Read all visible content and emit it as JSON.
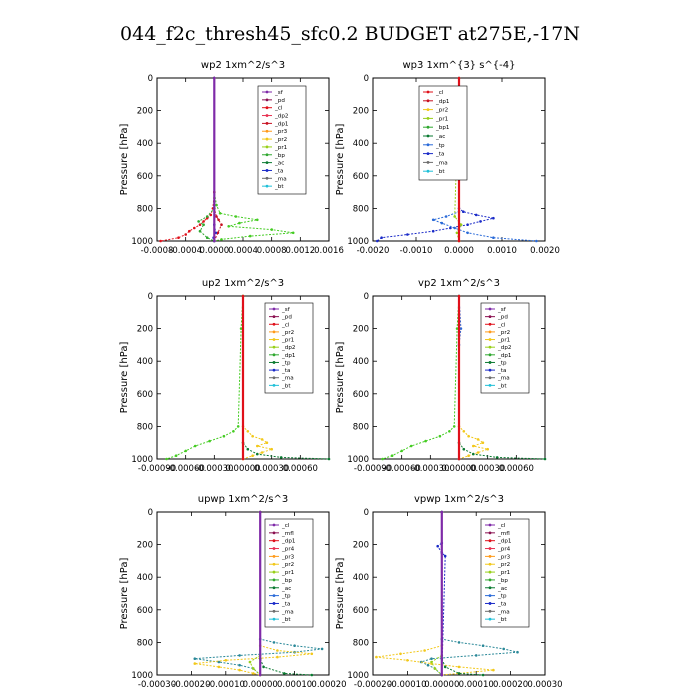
{
  "title": "044_f2c_thresh45_sfc0.2  BUDGET at275E,-17N",
  "chart_data": [
    {
      "type": "line",
      "title": "wp2   1xm^2/s^3",
      "ylabel": "Pressure  [hPa]",
      "xlim": [
        -0.0008,
        0.0016
      ],
      "ylim": [
        1000,
        0
      ],
      "xticks": [
        -0.0008,
        -0.0004,
        0.0,
        0.0004,
        0.0008,
        0.0012,
        0.0016
      ],
      "xtick_labels": [
        "-0.0008",
        "-0.0004",
        "0.0000",
        "0.0004",
        "0.0008",
        "0.0012",
        "0.0016"
      ],
      "yticks": [
        0,
        200,
        400,
        600,
        800,
        1000
      ],
      "ytick_labels": [
        "0",
        "200",
        "400",
        "600",
        "800",
        "1000"
      ],
      "legend": [
        "_sf",
        "_pd",
        "_cl",
        "_dp2",
        "_dp1",
        "_pr3",
        "_pr2",
        "_pr1",
        "_bp",
        "_ac",
        "_ta",
        "_ma",
        "_bt"
      ],
      "legend_colors": [
        "#7f2aa8",
        "#8a1050",
        "#e0101a",
        "#e83050",
        "#c81020",
        "#ff9a1a",
        "#f2c81a",
        "#98d01a",
        "#30a830",
        "#0a7a30",
        "#1a2ac8",
        "#6d6d6d",
        "#20c0d8"
      ],
      "series": [
        {
          "name": "_pr1",
          "color": "#44cc22",
          "y": [
            0,
            700,
            780,
            830,
            850,
            870,
            890,
            910,
            930,
            950,
            970,
            990,
            1000
          ],
          "x": [
            0.0,
            0.0,
            3e-05,
            8e-05,
            0.0003,
            0.0006,
            0.00035,
            0.0002,
            0.0008,
            0.0011,
            0.0005,
            0.0001,
            0.0
          ]
        },
        {
          "name": "_cl",
          "color": "#e0101a",
          "y": [
            0,
            700,
            800,
            840,
            860,
            880,
            900,
            920,
            940,
            960,
            980,
            1000
          ],
          "x": [
            0.0,
            0.0,
            -2e-05,
            -5e-05,
            -0.0001,
            -0.00015,
            -0.0002,
            -0.00028,
            -0.00035,
            -0.0004,
            -0.0005,
            -0.00075
          ]
        },
        {
          "name": "_dp1",
          "color": "#c81020",
          "y": [
            0,
            800,
            850,
            870,
            900,
            950,
            1000
          ],
          "x": [
            0.0,
            0.0,
            3e-05,
            6e-05,
            0.0001,
            5e-05,
            0.0
          ]
        },
        {
          "name": "_bp",
          "color": "#30a830",
          "y": [
            0,
            800,
            850,
            880,
            900,
            940,
            980,
            1000
          ],
          "x": [
            0.0,
            0.0,
            -0.0001,
            -0.00022,
            -0.00015,
            -0.0002,
            -0.0001,
            0.0
          ]
        },
        {
          "name": "_ta",
          "color": "#1a2ac8",
          "y": [
            0,
            900,
            950,
            980,
            1000
          ],
          "x": [
            0.0,
            0.0,
            2e-05,
            -1e-05,
            0.0
          ]
        },
        {
          "name": "_sf",
          "color": "#7f2aa8",
          "y": [
            0,
            1000
          ],
          "x": [
            0.0,
            0.0
          ]
        }
      ]
    },
    {
      "type": "line",
      "title": "wp3   1xm^{3} s^{-4}",
      "ylabel": "Pressure  [hPa]",
      "xlim": [
        -0.002,
        0.002
      ],
      "ylim": [
        1000,
        0
      ],
      "xticks": [
        -0.002,
        -0.001,
        0.0,
        0.001,
        0.002
      ],
      "xtick_labels": [
        "-0.0020",
        "-0.0010",
        "0.0000",
        "0.0010",
        "0.0020"
      ],
      "yticks": [
        0,
        200,
        400,
        600,
        800,
        1000
      ],
      "ytick_labels": [
        "0",
        "200",
        "400",
        "600",
        "800",
        "1000"
      ],
      "legend": [
        "_cl",
        "_dp1",
        "_pr2",
        "_pr1",
        "_bp1",
        "_ac",
        "_tp",
        "_ta",
        "_ma",
        "_bt"
      ],
      "legend_colors": [
        "#e0101a",
        "#c81020",
        "#f2c81a",
        "#98d01a",
        "#30a830",
        "#0a7a30",
        "#2a6ad8",
        "#1a2ac8",
        "#6d6d6d",
        "#20c0d8"
      ],
      "series": [
        {
          "name": "_ta",
          "color": "#1a2ac8",
          "y": [
            0,
            800,
            820,
            840,
            860,
            880,
            900,
            920,
            940,
            960,
            980,
            1000
          ],
          "x": [
            0.0,
            0.0,
            0.0001,
            0.0004,
            0.0008,
            0.0005,
            0.0002,
            -0.0002,
            -0.0006,
            -0.0012,
            -0.0018,
            -0.0019
          ]
        },
        {
          "name": "_tp",
          "color": "#2a6ad8",
          "y": [
            0,
            820,
            850,
            870,
            890,
            920,
            950,
            980,
            1000
          ],
          "x": [
            0.0,
            0.0,
            -0.0003,
            -0.0006,
            -0.0004,
            -0.0001,
            0.0002,
            0.0008,
            0.0018
          ]
        },
        {
          "name": "_pr1",
          "color": "#98d01a",
          "y": [
            0,
            850,
            900,
            950,
            1000
          ],
          "x": [
            0.0,
            -0.0001,
            5e-05,
            -5e-05,
            0.0
          ]
        },
        {
          "name": "_cl",
          "color": "#e0101a",
          "y": [
            0,
            1000
          ],
          "x": [
            0.0,
            0.0
          ]
        }
      ]
    },
    {
      "type": "line",
      "title": "up2   1xm^2/s^3",
      "ylabel": "Pressure  [hPa]",
      "xlim": [
        -0.0009,
        0.0009
      ],
      "ylim": [
        1000,
        0
      ],
      "xticks": [
        -0.0009,
        -0.0006,
        -0.0003,
        0.0,
        0.0003,
        0.0006
      ],
      "xtick_labels": [
        "-0.00090",
        "-0.00060",
        "-0.00030",
        "0.00000",
        "0.00030",
        "0.00060"
      ],
      "yticks": [
        0,
        200,
        400,
        600,
        800,
        1000
      ],
      "ytick_labels": [
        "0",
        "200",
        "400",
        "600",
        "800",
        "1000"
      ],
      "legend": [
        "_sf",
        "_pd",
        "_cl",
        "_pr2",
        "_pr1",
        "_dp2",
        "_dp1",
        "_tp",
        "_ta",
        "_ma",
        "_bt"
      ],
      "legend_colors": [
        "#7f2aa8",
        "#8a1050",
        "#e0101a",
        "#ff9a1a",
        "#f2c81a",
        "#98d01a",
        "#30a830",
        "#0a7a30",
        "#1a2ac8",
        "#6d6d6d",
        "#20c0d8"
      ],
      "series": [
        {
          "name": "_dp2",
          "color": "#44cc22",
          "y": [
            0,
            200,
            800,
            830,
            860,
            890,
            920,
            950,
            980,
            1000
          ],
          "x": [
            0.0,
            -2e-05,
            -5e-05,
            -0.0001,
            -0.0002,
            -0.00035,
            -0.0005,
            -0.0006,
            -0.0007,
            -0.0008
          ]
        },
        {
          "name": "_pr1",
          "color": "#f2c81a",
          "y": [
            0,
            800,
            830,
            860,
            880,
            900,
            920,
            940,
            960,
            980,
            1000
          ],
          "x": [
            0.0,
            0.0,
            5e-05,
            0.0001,
            0.0002,
            0.00025,
            0.00015,
            0.0003,
            0.0002,
            0.0001,
            0.0
          ]
        },
        {
          "name": "_ac",
          "color": "#0a7a30",
          "y": [
            0,
            900,
            940,
            970,
            990,
            1000
          ],
          "x": [
            0.0,
            0.0,
            5e-05,
            0.00015,
            0.0004,
            0.0009
          ]
        },
        {
          "name": "_cl",
          "color": "#e0101a",
          "y": [
            0,
            1000
          ],
          "x": [
            0.0,
            0.0
          ]
        }
      ]
    },
    {
      "type": "line",
      "title": "vp2   1xm^2/s^3",
      "ylabel": "Pressure  [hPa]",
      "xlim": [
        -0.0009,
        0.0009
      ],
      "ylim": [
        1000,
        0
      ],
      "xticks": [
        -0.0009,
        -0.0006,
        -0.0003,
        0.0,
        0.0003,
        0.0006
      ],
      "xtick_labels": [
        "-0.00090",
        "-0.00060",
        "-0.00030",
        "0.00000",
        "0.00030",
        "0.00060"
      ],
      "yticks": [
        0,
        200,
        400,
        600,
        800,
        1000
      ],
      "ytick_labels": [
        "0",
        "200",
        "400",
        "600",
        "800",
        "1000"
      ],
      "legend": [
        "_sf",
        "_pd",
        "_cl",
        "_pr2",
        "_pr1",
        "_dp2",
        "_dp1",
        "_tp",
        "_ta",
        "_ma",
        "_bt"
      ],
      "legend_colors": [
        "#7f2aa8",
        "#8a1050",
        "#e0101a",
        "#ff9a1a",
        "#f2c81a",
        "#98d01a",
        "#30a830",
        "#0a7a30",
        "#1a2ac8",
        "#6d6d6d",
        "#20c0d8"
      ],
      "series": [
        {
          "name": "_dp2",
          "color": "#44cc22",
          "y": [
            0,
            200,
            800,
            830,
            860,
            890,
            920,
            950,
            980,
            1000
          ],
          "x": [
            0.0,
            -2e-05,
            -5e-05,
            -0.0001,
            -0.0002,
            -0.00035,
            -0.0005,
            -0.0006,
            -0.0007,
            -0.0008
          ]
        },
        {
          "name": "_pr1",
          "color": "#f2c81a",
          "y": [
            0,
            800,
            830,
            860,
            880,
            900,
            920,
            940,
            960,
            980,
            1000
          ],
          "x": [
            0.0,
            0.0,
            5e-05,
            0.0001,
            0.0002,
            0.00025,
            0.00015,
            0.0003,
            0.0002,
            0.0001,
            0.0
          ]
        },
        {
          "name": "_ac",
          "color": "#0a7a30",
          "y": [
            0,
            900,
            940,
            970,
            990,
            1000
          ],
          "x": [
            0.0,
            0.0,
            5e-05,
            0.00015,
            0.0004,
            0.0009
          ]
        },
        {
          "name": "_tp",
          "color": "#2a6ad8",
          "y": [
            0,
            200,
            300,
            1000
          ],
          "x": [
            0.0,
            2e-05,
            0.0,
            0.0
          ]
        },
        {
          "name": "_cl",
          "color": "#e0101a",
          "y": [
            0,
            1000
          ],
          "x": [
            0.0,
            0.0
          ]
        }
      ]
    },
    {
      "type": "line",
      "title": "upwp   1xm^2/s^3",
      "ylabel": "Pressure  [hPa]",
      "xlim": [
        -0.0003,
        0.0002
      ],
      "ylim": [
        1000,
        0
      ],
      "xticks": [
        -0.0003,
        -0.0002,
        -0.0001,
        0.0,
        0.0001,
        0.0002
      ],
      "xtick_labels": [
        "-0.00030",
        "-0.00020",
        "-0.00010",
        "0.00000",
        "0.00010",
        "0.00020"
      ],
      "yticks": [
        0,
        200,
        400,
        600,
        800,
        1000
      ],
      "ytick_labels": [
        "0",
        "200",
        "400",
        "600",
        "800",
        "1000"
      ],
      "legend": [
        "_cl",
        "_mfl",
        "_dp1",
        "_pr4",
        "_pr3",
        "_pr2",
        "_pr1",
        "_bp",
        "_ac",
        "_tp",
        "_ta",
        "_ma",
        "_bt"
      ],
      "legend_colors": [
        "#7f2aa8",
        "#8a1050",
        "#e0101a",
        "#e83050",
        "#ff9a1a",
        "#f2c81a",
        "#98d01a",
        "#30a830",
        "#0a7a30",
        "#2a6ad8",
        "#1a2ac8",
        "#6d6d6d",
        "#20c0d8"
      ],
      "series": [
        {
          "name": "_tp",
          "color": "#2a8898",
          "y": [
            0,
            780,
            800,
            820,
            840,
            860,
            880,
            900,
            920,
            940,
            960,
            1000
          ],
          "x": [
            0.0,
            0.0,
            4e-05,
            0.0001,
            0.00018,
            0.0001,
            -6e-05,
            -0.00019,
            -0.00012,
            -6e-05,
            -2e-05,
            0.0
          ]
        },
        {
          "name": "_pr2",
          "color": "#f2c81a",
          "y": [
            0,
            820,
            850,
            870,
            890,
            910,
            930,
            950,
            970,
            990,
            1000
          ],
          "x": [
            0.0,
            0.0,
            5e-05,
            0.00015,
            5e-05,
            -0.0001,
            -0.00019,
            -0.00012,
            -6e-05,
            -2e-05,
            0.0
          ]
        },
        {
          "name": "_pr1",
          "color": "#98d01a",
          "y": [
            0,
            880,
            920,
            960,
            1000
          ],
          "x": [
            0.0,
            0.0,
            -3e-05,
            -2e-05,
            0.0
          ]
        },
        {
          "name": "_ac",
          "color": "#0a7a30",
          "y": [
            0,
            900,
            950,
            990,
            1000
          ],
          "x": [
            0.0,
            0.0,
            1e-05,
            7e-05,
            0.00015
          ]
        },
        {
          "name": "_cl",
          "color": "#7f2aa8",
          "y": [
            0,
            1000
          ],
          "x": [
            0.0,
            0.0
          ]
        }
      ]
    },
    {
      "type": "line",
      "title": "vpwp   1xm^2/s^3",
      "ylabel": "Pressure  [hPa]",
      "xlim": [
        -0.0002,
        0.0003
      ],
      "ylim": [
        1000,
        0
      ],
      "xticks": [
        -0.0002,
        -0.0001,
        0.0,
        0.0001,
        0.0002,
        0.0003
      ],
      "xtick_labels": [
        "-0.00020",
        "-0.00010",
        "0.00000",
        "0.00010",
        "0.00020",
        "0.00030"
      ],
      "yticks": [
        0,
        200,
        400,
        600,
        800,
        1000
      ],
      "ytick_labels": [
        "0",
        "200",
        "400",
        "600",
        "800",
        "1000"
      ],
      "legend": [
        "_cl",
        "_mfl",
        "_dp1",
        "_pr4",
        "_pr3",
        "_pr2",
        "_pr1",
        "_bp",
        "_ac",
        "_tp",
        "_ta",
        "_ma",
        "_bt"
      ],
      "legend_colors": [
        "#7f2aa8",
        "#8a1050",
        "#e0101a",
        "#e83050",
        "#ff9a1a",
        "#f2c81a",
        "#98d01a",
        "#30a830",
        "#0a7a30",
        "#2a6ad8",
        "#1a2ac8",
        "#6d6d6d",
        "#20c0d8"
      ],
      "series": [
        {
          "name": "_tp",
          "color": "#2a8898",
          "y": [
            0,
            780,
            800,
            820,
            840,
            860,
            880,
            900,
            920,
            940,
            960,
            1000
          ],
          "x": [
            0.0,
            0.0,
            5e-05,
            0.00012,
            0.00018,
            0.00022,
            0.0001,
            -3e-05,
            -6e-05,
            -4e-05,
            -2e-05,
            0.0
          ]
        },
        {
          "name": "_pr2",
          "color": "#f2c81a",
          "y": [
            0,
            820,
            850,
            870,
            890,
            910,
            930,
            950,
            970,
            990,
            1000
          ],
          "x": [
            0.0,
            0.0,
            -5e-05,
            -0.00012,
            -0.00019,
            -0.0001,
            -3e-05,
            5e-05,
            0.00015,
            5e-05,
            0.0
          ]
        },
        {
          "name": "_pr1",
          "color": "#98d01a",
          "y": [
            0,
            880,
            920,
            960,
            1000
          ],
          "x": [
            0.0,
            0.0,
            -3e-05,
            -2e-05,
            0.0
          ]
        },
        {
          "name": "_ac",
          "color": "#0a7a30",
          "y": [
            0,
            900,
            950,
            990,
            1000
          ],
          "x": [
            0.0,
            0.0,
            1e-05,
            5e-05,
            0.00012
          ]
        },
        {
          "name": "_ta",
          "color": "#1a2ac8",
          "y": [
            0,
            190,
            210,
            250,
            270,
            1000
          ],
          "x": [
            0.0,
            0.0,
            -1.2e-05,
            0.0,
            1e-05,
            0.0
          ]
        },
        {
          "name": "_cl",
          "color": "#7f2aa8",
          "y": [
            0,
            1000
          ],
          "x": [
            0.0,
            0.0
          ]
        }
      ]
    }
  ]
}
